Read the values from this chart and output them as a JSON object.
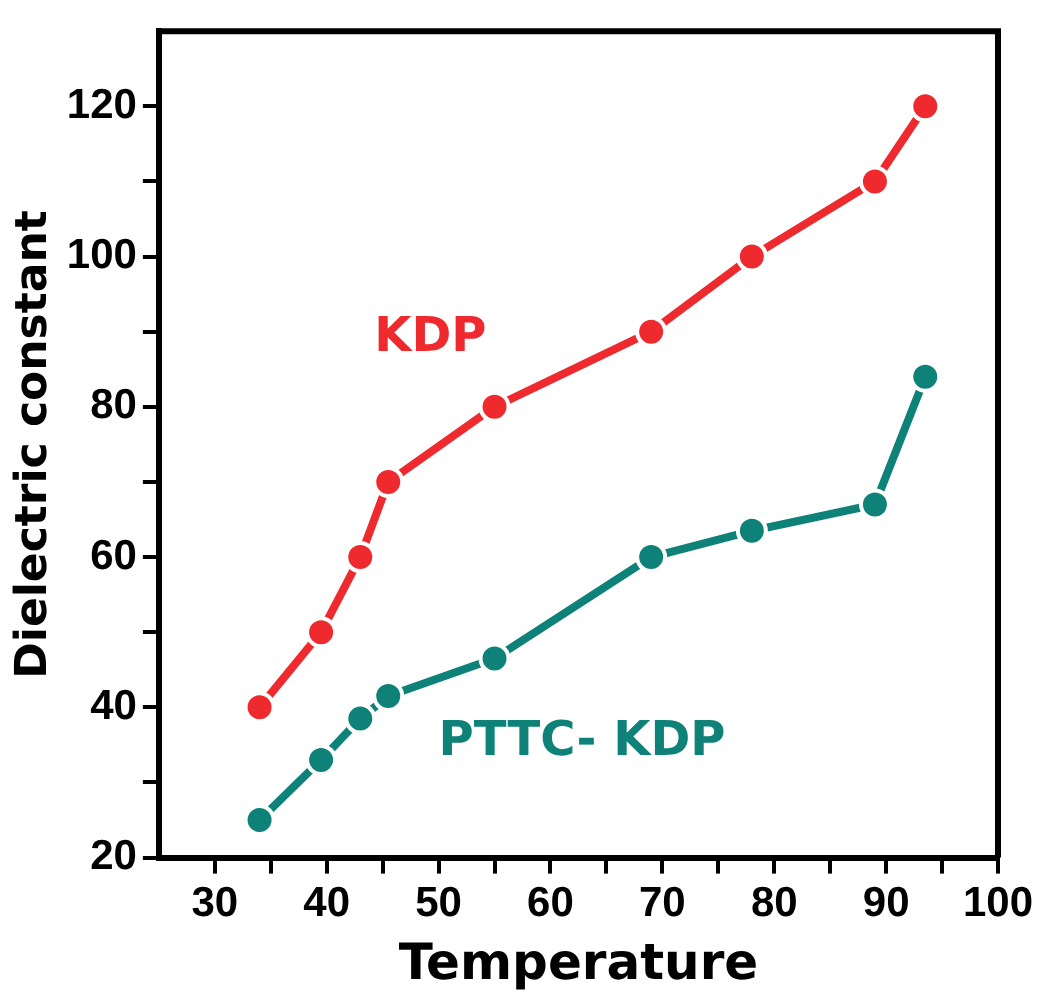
{
  "chart_data": {
    "type": "line",
    "xlabel": "Temperature",
    "ylabel": "Dielectric constant",
    "xlim": [
      25,
      100
    ],
    "ylim": [
      20,
      130
    ],
    "xticks": [
      30,
      {
        "value": 35,
        "label": null
      },
      40,
      {
        "value": 45,
        "label": null
      },
      50,
      {
        "value": 55,
        "label": null
      },
      60,
      {
        "value": 65,
        "label": null
      },
      70,
      {
        "value": 75,
        "label": null
      },
      80,
      {
        "value": 85,
        "label": null
      },
      90,
      {
        "value": 95,
        "label": null
      },
      100
    ],
    "yticks": [
      20,
      {
        "value": 30,
        "label": null
      },
      40,
      {
        "value": 50,
        "label": null
      },
      60,
      {
        "value": 70,
        "label": null
      },
      80,
      {
        "value": 90,
        "label": null
      },
      100,
      {
        "value": 110,
        "label": null
      },
      120
    ],
    "x": [
      34,
      39.5,
      43,
      45.5,
      55,
      69,
      78,
      89,
      93.5
    ],
    "series": [
      {
        "name": "KDP",
        "color": "#ee2a2e",
        "values": [
          40,
          50,
          60,
          70,
          80,
          90,
          100,
          110,
          120
        ]
      },
      {
        "name": "PTTC- KDP",
        "color": "#0e8278",
        "values": [
          25,
          33,
          38.5,
          41.5,
          46.5,
          60,
          63.5,
          67,
          84
        ]
      }
    ],
    "marker": "circle",
    "line_style": "solid",
    "grid": false,
    "legend": false
  }
}
